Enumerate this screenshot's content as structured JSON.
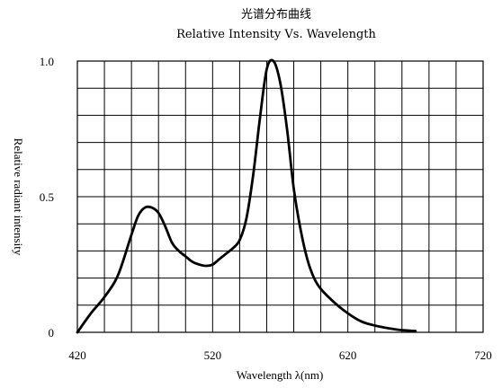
{
  "chart_data": {
    "type": "line",
    "title_cn": "光谱分布曲线",
    "title": "Relative Intensity Vs. Wavelength",
    "xlabel": "Wavelength λ(nm)",
    "ylabel": "Relative radiant intensity",
    "xlim": [
      420,
      720
    ],
    "ylim": [
      0,
      1.0
    ],
    "x_ticks": [
      420,
      520,
      620,
      720
    ],
    "y_ticks": [
      0,
      0.5,
      1.0
    ],
    "x_tick_labels": [
      "420",
      "520",
      "620",
      "720"
    ],
    "y_tick_labels": [
      "0",
      "0.5",
      "1.0"
    ],
    "grid": true,
    "legend": "none",
    "colors": {
      "line": "#000000",
      "grid": "#000000"
    },
    "series": [
      {
        "x": [
          420,
          430,
          440,
          450,
          460,
          465,
          470,
          475,
          480,
          485,
          490,
          495,
          500,
          505,
          510,
          515,
          520,
          525,
          530,
          535,
          540,
          545,
          550,
          555,
          560,
          565,
          570,
          575,
          580,
          585,
          590,
          595,
          600,
          610,
          620,
          630,
          640,
          650,
          660,
          670
        ],
        "y": [
          0.0,
          0.07,
          0.13,
          0.21,
          0.36,
          0.43,
          0.46,
          0.46,
          0.44,
          0.39,
          0.33,
          0.3,
          0.28,
          0.26,
          0.25,
          0.245,
          0.25,
          0.27,
          0.29,
          0.31,
          0.34,
          0.42,
          0.58,
          0.79,
          0.97,
          1.0,
          0.92,
          0.75,
          0.53,
          0.38,
          0.27,
          0.2,
          0.16,
          0.11,
          0.07,
          0.04,
          0.025,
          0.015,
          0.008,
          0.005
        ]
      }
    ]
  }
}
